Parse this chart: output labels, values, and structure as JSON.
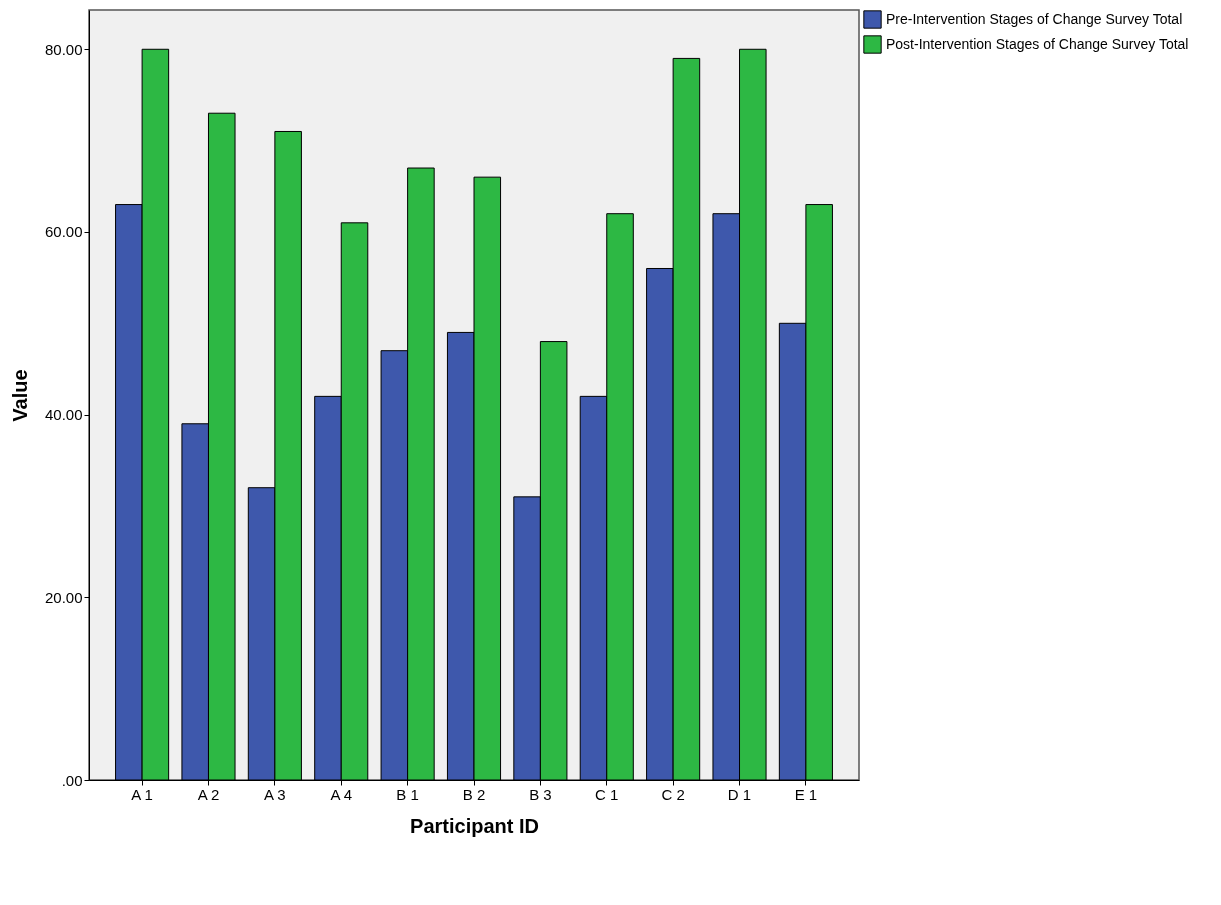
{
  "chart_data": {
    "type": "bar",
    "xlabel": "Participant ID",
    "ylabel": "Value",
    "categories": [
      "A 1",
      "A 2",
      "A 3",
      "A 4",
      "B 1",
      "B 2",
      "B 3",
      "C 1",
      "C 2",
      "D 1",
      "E 1"
    ],
    "series": [
      {
        "name": "Pre-Intervention Stages of Change Survey Total",
        "color": "#3e58ac",
        "values": [
          63,
          39,
          32,
          42,
          47,
          49,
          31,
          42,
          56,
          62,
          50
        ]
      },
      {
        "name": "Post-Intervention Stages of Change Survey Total",
        "color": "#2db844",
        "values": [
          80,
          73,
          71,
          61,
          67,
          66,
          48,
          62,
          79,
          80,
          63
        ]
      }
    ],
    "ylim": [
      0,
      84.3
    ],
    "yticks": [
      {
        "value": 0,
        "label": ".00"
      },
      {
        "value": 20,
        "label": "20.00"
      },
      {
        "value": 40,
        "label": "40.00"
      },
      {
        "value": 60,
        "label": "60.00"
      },
      {
        "value": 80,
        "label": "80.00"
      }
    ],
    "grid": false,
    "legend": "top right"
  }
}
